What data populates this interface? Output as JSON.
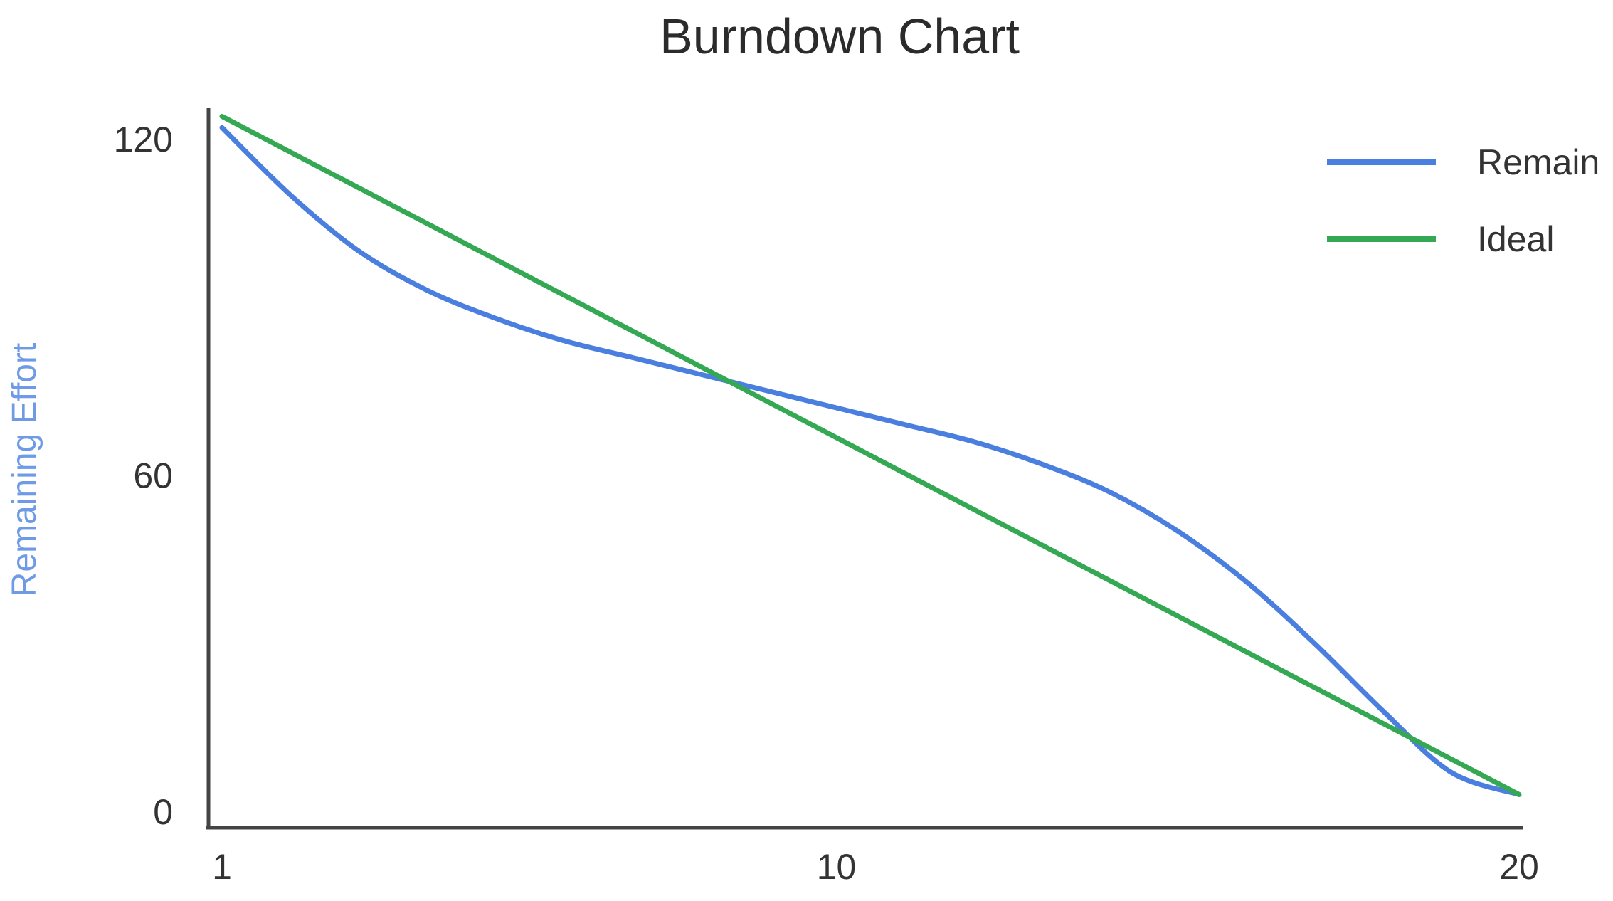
{
  "chart_data": {
    "type": "line",
    "title": "Burndown Chart",
    "xlabel": "",
    "ylabel": "Remaining Effort",
    "xlim": [
      1,
      20
    ],
    "ylim": [
      0,
      120
    ],
    "x_ticks": [
      "1",
      "10",
      "20"
    ],
    "y_ticks": [
      "120",
      "60",
      "0"
    ],
    "grid": false,
    "legend_position": "top-right",
    "series": [
      {
        "name": "Remain",
        "color": "#4a7fe0",
        "x": [
          1,
          2,
          3,
          4,
          5,
          6,
          7,
          8,
          9,
          10,
          11,
          12,
          13,
          14,
          15,
          16,
          17,
          18,
          19,
          20
        ],
        "values": [
          122,
          110,
          100,
          93,
          88,
          84,
          81,
          78,
          75,
          72,
          69,
          66,
          62,
          57,
          50,
          41,
          30,
          18,
          7,
          3
        ]
      },
      {
        "name": "Ideal",
        "color": "#34a853",
        "x": [
          1,
          20
        ],
        "values": [
          124,
          3
        ]
      }
    ],
    "axis_color": "#444444",
    "ylabel_color": "#6f9be6"
  }
}
